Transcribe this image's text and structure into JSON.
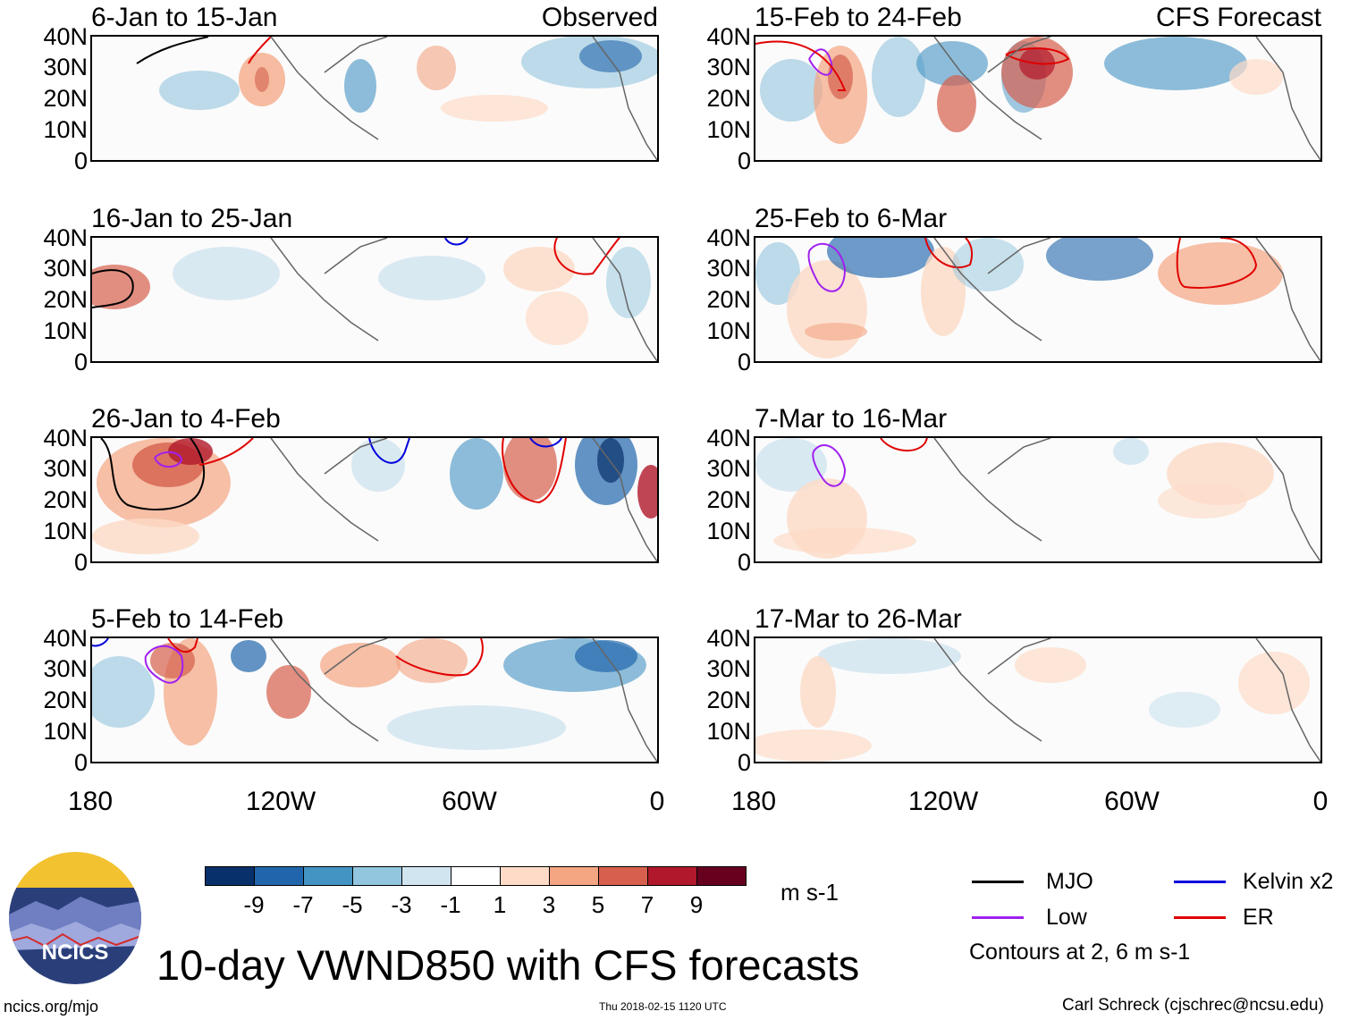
{
  "observed_label": "Observed",
  "forecast_label": "CFS Forecast",
  "lat_labels": [
    "40N",
    "30N",
    "20N",
    "10N",
    "0"
  ],
  "lon_labels": [
    "180",
    "120W",
    "60W",
    "0"
  ],
  "panels": {
    "obs1": {
      "title": "6-Jan to 15-Jan"
    },
    "obs2": {
      "title": "16-Jan to 25-Jan"
    },
    "obs3": {
      "title": "26-Jan to 4-Feb"
    },
    "obs4": {
      "title": "5-Feb to 14-Feb"
    },
    "fc1": {
      "title": "15-Feb to 24-Feb"
    },
    "fc2": {
      "title": "25-Feb to 6-Mar"
    },
    "fc3": {
      "title": "7-Mar to 16-Mar"
    },
    "fc4": {
      "title": "17-Mar to 26-Mar"
    }
  },
  "colorbar": {
    "colors": [
      "#08306b",
      "#2166ac",
      "#4393c3",
      "#92c5de",
      "#d1e5f0",
      "#ffffff",
      "#fddbc7",
      "#f4a582",
      "#d6604d",
      "#b2182b",
      "#67001f"
    ],
    "labels": [
      "-9",
      "-7",
      "-5",
      "-3",
      "-1",
      "1",
      "3",
      "5",
      "7",
      "9"
    ],
    "units": "m s-1"
  },
  "legend": {
    "mjo": {
      "label": "MJO",
      "color": "#000000"
    },
    "kelvin": {
      "label": "Kelvin x2",
      "color": "#0000dd"
    },
    "low": {
      "label": "Low",
      "color": "#a020f0"
    },
    "er": {
      "label": "ER",
      "color": "#e00000"
    },
    "note": "Contours at 2, 6 m s-1"
  },
  "logo_text": "NCICS",
  "title": "10-day VWND850 with CFS forecasts",
  "footer": {
    "url": "ncics.org/mjo",
    "timestamp": "Thu 2018-02-15 1120 UTC",
    "author": "Carl Schreck (cjschrec@ncsu.edu)"
  }
}
